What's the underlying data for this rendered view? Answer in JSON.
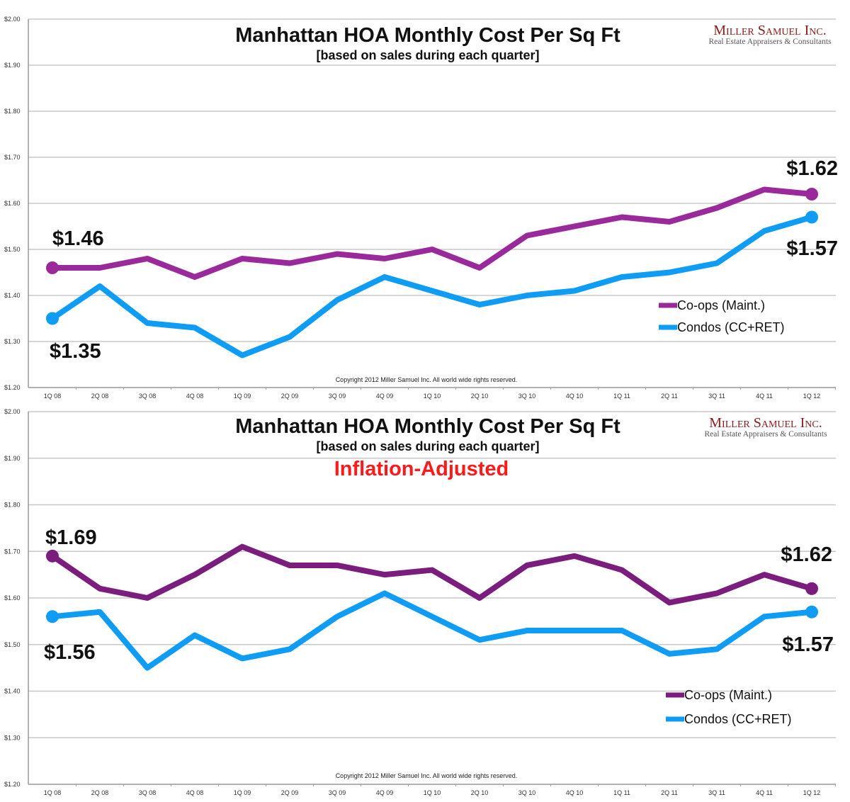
{
  "colors": {
    "coops_top": "#9a2a9c",
    "coops_bottom": "#7a1d7c",
    "condos": "#0f9cf5",
    "grid": "#c8c8c8",
    "axis": "#999999",
    "inflation": "#ff1a1a"
  },
  "logo": {
    "name": "Miller Samuel Inc.",
    "tagline": "Real Estate Appraisers & Consultants"
  },
  "chart_data": [
    {
      "type": "line",
      "title": "Manhattan HOA Monthly Cost Per Sq Ft",
      "subtitle": "[based on sales during each quarter]",
      "copyright": "Copyright 2012 Miller Samuel Inc.  All world wide rights reserved.",
      "ylim": [
        1.2,
        2.0
      ],
      "yticks": [
        "$1.20",
        "$1.30",
        "$1.40",
        "$1.50",
        "$1.60",
        "$1.70",
        "$1.80",
        "$1.90",
        "$2.00"
      ],
      "categories": [
        "1Q 08",
        "2Q 08",
        "3Q 08",
        "4Q 08",
        "1Q 09",
        "2Q 09",
        "3Q 09",
        "4Q 09",
        "1Q 10",
        "2Q 10",
        "3Q 10",
        "4Q 10",
        "1Q 11",
        "2Q 11",
        "3Q 11",
        "4Q 11",
        "1Q 12"
      ],
      "series": [
        {
          "name": "Co-ops (Maint.)",
          "values": [
            1.46,
            1.46,
            1.48,
            1.44,
            1.48,
            1.47,
            1.49,
            1.48,
            1.5,
            1.46,
            1.53,
            1.55,
            1.57,
            1.56,
            1.59,
            1.63,
            1.62
          ]
        },
        {
          "name": "Condos (CC+RET)",
          "values": [
            1.35,
            1.42,
            1.34,
            1.33,
            1.27,
            1.31,
            1.39,
            1.44,
            1.41,
            1.38,
            1.4,
            1.41,
            1.44,
            1.45,
            1.47,
            1.54,
            1.57
          ]
        }
      ],
      "annotations": [
        "$1.46",
        "$1.35",
        "$1.62",
        "$1.57"
      ],
      "legend": "right",
      "grid": true
    },
    {
      "type": "line",
      "title": "Manhattan HOA Monthly Cost Per Sq Ft",
      "subtitle": "[based on sales during each quarter]",
      "note": "Inflation-Adjusted",
      "copyright": "Copyright 2012 Miller Samuel Inc.  All world wide rights reserved.",
      "ylim": [
        1.2,
        2.0
      ],
      "yticks": [
        "$1.20",
        "$1.30",
        "$1.40",
        "$1.50",
        "$1.60",
        "$1.70",
        "$1.80",
        "$1.90",
        "$2.00"
      ],
      "categories": [
        "1Q 08",
        "2Q 08",
        "3Q 08",
        "4Q 08",
        "1Q 09",
        "2Q 09",
        "3Q 09",
        "4Q 09",
        "1Q 10",
        "2Q 10",
        "3Q 10",
        "4Q 10",
        "1Q 11",
        "2Q 11",
        "3Q 11",
        "4Q 11",
        "1Q 12"
      ],
      "series": [
        {
          "name": "Co-ops (Maint.)",
          "values": [
            1.69,
            1.62,
            1.6,
            1.65,
            1.71,
            1.67,
            1.67,
            1.65,
            1.66,
            1.6,
            1.67,
            1.69,
            1.66,
            1.59,
            1.61,
            1.65,
            1.62
          ]
        },
        {
          "name": "Condos (CC+RET)",
          "values": [
            1.56,
            1.57,
            1.45,
            1.52,
            1.47,
            1.49,
            1.56,
            1.61,
            1.56,
            1.51,
            1.53,
            1.53,
            1.53,
            1.48,
            1.49,
            1.56,
            1.57
          ]
        }
      ],
      "annotations": [
        "$1.69",
        "$1.56",
        "$1.62",
        "$1.57"
      ],
      "legend": "right",
      "grid": true
    }
  ]
}
